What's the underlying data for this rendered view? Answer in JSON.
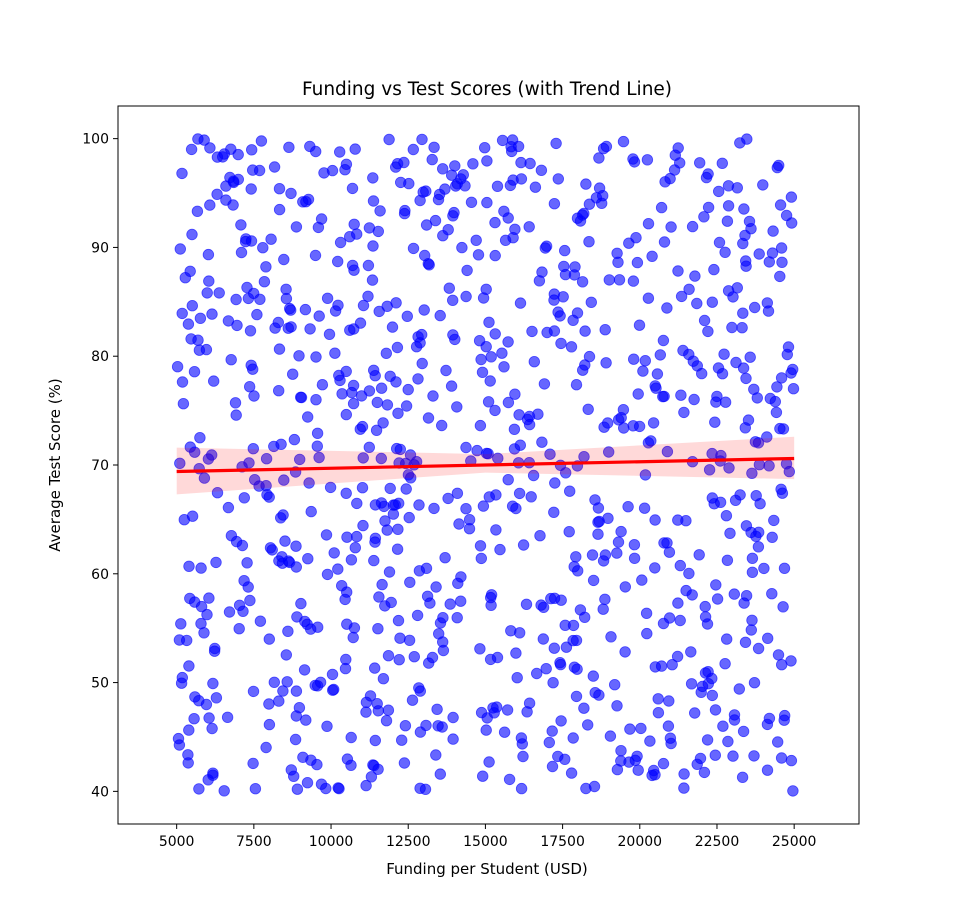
{
  "chart_data": {
    "type": "scatter",
    "title": "Funding vs Test Scores (with Trend Line)",
    "xlabel": "Funding per Student (USD)",
    "ylabel": "Average Test Score (%)",
    "xlim": [
      3100,
      27100
    ],
    "ylim": [
      37,
      103
    ],
    "xticks": [
      5000,
      7500,
      10000,
      12500,
      15000,
      17500,
      20000,
      22500,
      25000
    ],
    "xtick_labels": [
      "5000",
      "7500",
      "10000",
      "12500",
      "15000",
      "17500",
      "20000",
      "22500",
      "25000"
    ],
    "yticks": [
      40,
      50,
      60,
      70,
      80,
      90,
      100
    ],
    "ytick_labels": [
      "40",
      "50",
      "60",
      "70",
      "80",
      "90",
      "100"
    ],
    "grid": false,
    "legend": "none",
    "points": {
      "color": "#0000ff",
      "alpha": 0.6,
      "approx_count": 1000,
      "x_range": [
        5000,
        25000
      ],
      "y_range": [
        40,
        100
      ],
      "distribution": "uniform"
    },
    "trend_line": {
      "color": "#ff0000",
      "x": [
        5000,
        25000
      ],
      "y": [
        69.4,
        70.6
      ]
    },
    "confidence_band": {
      "color": "#ff0000",
      "alpha": 0.15,
      "x": [
        5000,
        15000,
        25000
      ],
      "lower": [
        67.3,
        69.3,
        68.7
      ],
      "upper": [
        71.6,
        71.0,
        72.6
      ]
    }
  }
}
